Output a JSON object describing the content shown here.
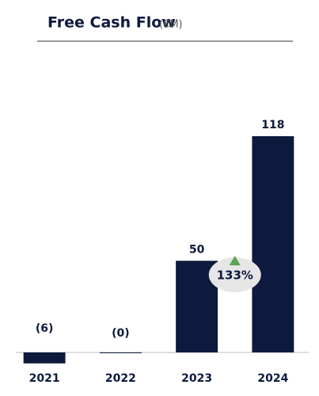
{
  "chart_data": {
    "type": "bar",
    "title": "Free Cash Flow",
    "subtitle": "(€M)",
    "categories": [
      "2021",
      "2022",
      "2023",
      "2024"
    ],
    "values": [
      -6,
      0,
      50,
      118
    ],
    "value_labels": [
      "(6)",
      "(0)",
      "50",
      "118"
    ],
    "color": "#0d1a3d",
    "ylim": [
      -10,
      120
    ],
    "grid": false,
    "annotation": "133%"
  }
}
